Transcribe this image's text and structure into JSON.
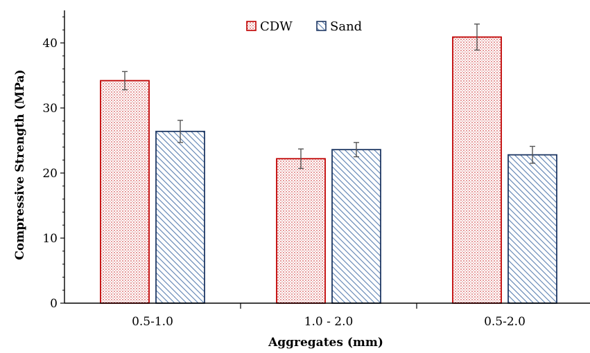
{
  "chart_data": {
    "type": "bar",
    "title": "",
    "xlabel": "Aggregates (mm)",
    "ylabel": "Compressive Strength (MPa)",
    "ylim": [
      0,
      45
    ],
    "yticks": [
      0,
      10,
      20,
      30,
      40
    ],
    "categories": [
      "0.5-1.0",
      "1.0 - 2.0",
      "0.5-2.0"
    ],
    "series": [
      {
        "name": "CDW",
        "values": [
          34.2,
          22.2,
          40.9
        ],
        "errors": [
          1.4,
          1.5,
          2.0
        ],
        "color": "#c00000",
        "pattern": "dots"
      },
      {
        "name": "Sand",
        "values": [
          26.4,
          23.6,
          22.8
        ],
        "errors": [
          1.7,
          1.1,
          1.3
        ],
        "color": "#1f3864",
        "pattern": "diagonal"
      }
    ],
    "legend": "top-center",
    "grid": false
  }
}
